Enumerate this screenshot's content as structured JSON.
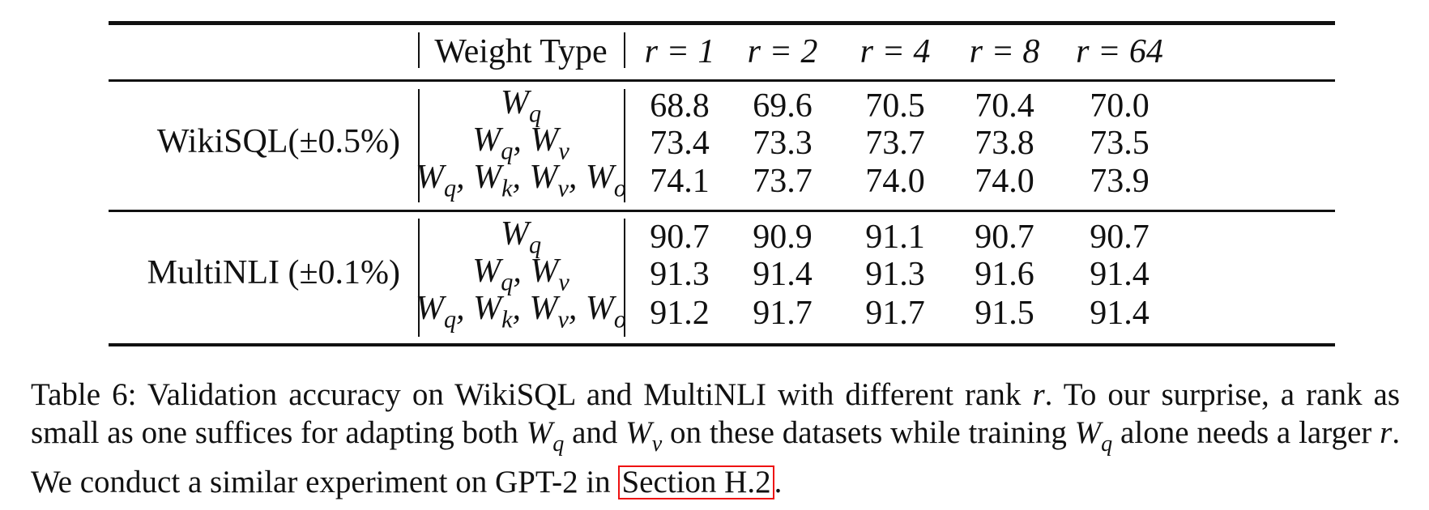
{
  "table": {
    "headers": {
      "weight_type": "Weight Type",
      "ranks": [
        "r = 1",
        "r = 2",
        "r = 4",
        "r = 8",
        "r = 64"
      ]
    },
    "groups": [
      {
        "dataset": "WikiSQL(±0.5%)",
        "rows": [
          {
            "weight": "Wq",
            "values": [
              "68.8",
              "69.6",
              "70.5",
              "70.4",
              "70.0"
            ]
          },
          {
            "weight": "Wq, Wv",
            "values": [
              "73.4",
              "73.3",
              "73.7",
              "73.8",
              "73.5"
            ]
          },
          {
            "weight": "Wq, Wk, Wv, Wo",
            "values": [
              "74.1",
              "73.7",
              "74.0",
              "74.0",
              "73.9"
            ]
          }
        ]
      },
      {
        "dataset": "MultiNLI (±0.1%)",
        "rows": [
          {
            "weight": "Wq",
            "values": [
              "90.7",
              "90.9",
              "91.1",
              "90.7",
              "90.7"
            ]
          },
          {
            "weight": "Wq, Wv",
            "values": [
              "91.3",
              "91.4",
              "91.3",
              "91.6",
              "91.4"
            ]
          },
          {
            "weight": "Wq, Wk, Wv, Wo",
            "values": [
              "91.2",
              "91.7",
              "91.7",
              "91.5",
              "91.4"
            ]
          }
        ]
      }
    ]
  },
  "caption": {
    "part1": "Table 6: Validation accuracy on WikiSQL and MultiNLI with different rank",
    "part2": ". To our surprise, a rank as small as one suffices for adapting both",
    "part3": "and",
    "part4": "on these datasets while training",
    "part5": "alone needs a larger",
    "part6": ". We conduct a similar experiment on GPT-2 in",
    "link_text": "Section H.2",
    "part7": "."
  },
  "colors": {
    "link_border": "#ee1111",
    "rule": "#111111"
  }
}
